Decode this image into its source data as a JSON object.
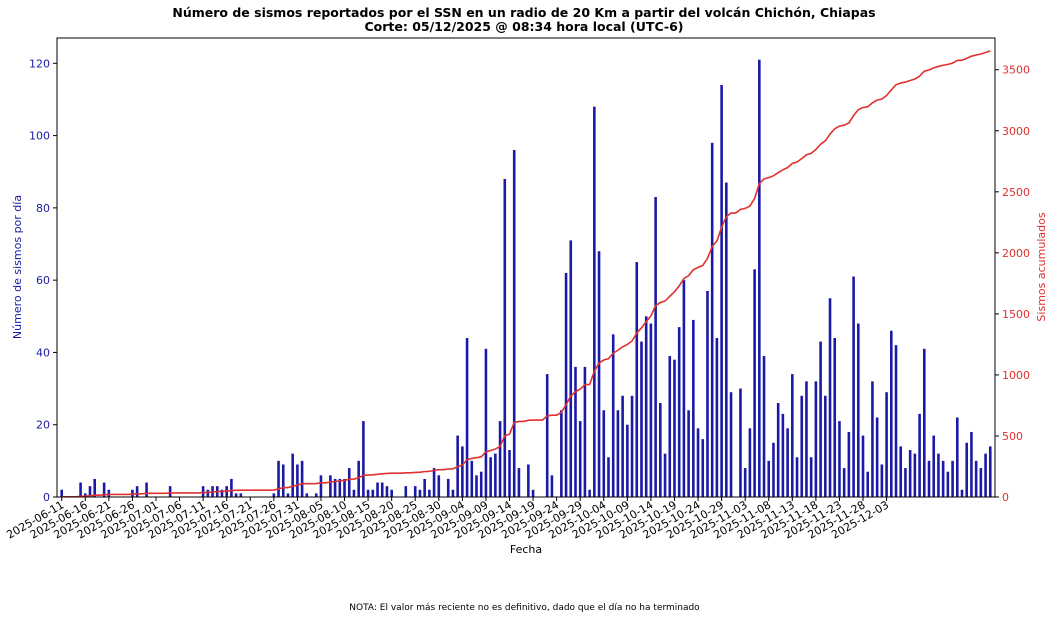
{
  "chart_data": {
    "type": "bar",
    "title": "Número de sismos reportados por el SSN en un radio de 20 Km a partir del volcán Chichón, Chiapas",
    "subtitle": "Corte: 05/12/2025 @ 08:34 hora local (UTC-6)",
    "xlabel": "Fecha",
    "ylabel": "Número de sismos por día",
    "y2label": "Sismos acumulados",
    "ylim": [
      0,
      127
    ],
    "y2lim": [
      0,
      3760
    ],
    "yticks": [
      "0",
      "20",
      "40",
      "60",
      "80",
      "100",
      "120"
    ],
    "y2ticks": [
      "0",
      "500",
      "1000",
      "1500",
      "2000",
      "2500",
      "3000",
      "3500"
    ],
    "date_start": "2025-06-11",
    "date_end": "2025-12-05",
    "xtick_labels": [
      "2025-06-11",
      "2025-06-16",
      "2025-06-21",
      "2025-06-26",
      "2025-07-01",
      "2025-07-06",
      "2025-07-11",
      "2025-07-16",
      "2025-07-21",
      "2025-07-26",
      "2025-07-31",
      "2025-08-05",
      "2025-08-10",
      "2025-08-15",
      "2025-08-20",
      "2025-08-25",
      "2025-08-30",
      "2025-09-04",
      "2025-09-09",
      "2025-09-14",
      "2025-09-19",
      "2025-09-24",
      "2025-09-29",
      "2025-10-04",
      "2025-10-09",
      "2025-10-14",
      "2025-10-19",
      "2025-10-24",
      "2025-10-29",
      "2025-11-03",
      "2025-11-08",
      "2025-11-13",
      "2025-11-18",
      "2025-11-23",
      "2025-11-28",
      "2025-12-03"
    ],
    "grid": false,
    "colors": {
      "bars": "#1a1aa6",
      "cumulative": "#e03030",
      "left_axis": "#1a1aa6",
      "right_axis": "#e03030"
    },
    "series": [
      {
        "type": "bar",
        "axis": "left",
        "values": [
          2,
          0,
          0,
          0,
          4,
          1,
          3,
          5,
          0,
          4,
          2,
          0,
          0,
          0,
          0,
          2,
          3,
          0,
          4,
          0,
          0,
          0,
          0,
          3,
          0,
          0,
          0,
          0,
          0,
          0,
          3,
          2,
          3,
          3,
          2,
          3,
          5,
          1,
          1,
          0,
          0,
          0,
          0,
          0,
          0,
          1,
          10,
          9,
          1,
          12,
          9,
          10,
          1,
          0,
          1,
          6,
          0,
          6,
          5,
          5,
          5,
          8,
          2,
          10,
          21,
          2,
          2,
          4,
          4,
          3,
          2,
          0,
          0,
          3,
          0,
          3,
          2,
          5,
          2,
          8,
          6,
          0,
          5,
          2,
          17,
          14,
          44,
          10,
          6,
          7,
          41,
          11,
          12,
          21,
          88,
          13,
          96,
          8,
          0,
          9,
          2,
          0,
          0,
          34,
          6,
          0,
          24,
          62,
          71,
          36,
          21,
          36,
          2,
          108,
          68,
          24,
          11,
          45,
          24,
          28,
          20,
          28,
          65,
          43,
          50,
          48,
          83,
          26,
          12,
          39,
          38,
          47,
          60,
          24,
          49,
          19,
          16,
          57,
          98,
          44,
          114,
          87,
          29,
          0,
          30,
          8,
          19,
          63,
          121,
          39,
          10,
          15,
          26,
          23,
          19,
          34,
          11,
          28,
          32,
          11,
          32,
          43,
          28,
          55,
          44,
          21,
          8,
          18,
          61,
          48,
          17,
          7,
          32,
          22,
          9,
          29,
          46,
          42,
          14,
          8,
          13,
          12,
          23,
          41,
          10,
          17,
          12,
          10,
          7,
          10,
          22,
          2,
          15,
          18,
          10,
          8,
          12,
          14
        ]
      },
      {
        "type": "line",
        "axis": "right",
        "values": [
          2,
          2,
          2,
          2,
          6,
          7,
          10,
          15,
          15,
          19,
          21,
          21,
          21,
          21,
          21,
          23,
          26,
          26,
          30,
          30,
          30,
          30,
          30,
          33,
          33,
          33,
          33,
          33,
          33,
          33,
          36,
          38,
          41,
          44,
          46,
          49,
          54,
          55,
          56,
          56,
          56,
          56,
          56,
          56,
          56,
          57,
          67,
          76,
          77,
          89,
          98,
          108,
          109,
          109,
          110,
          116,
          116,
          122,
          127,
          132,
          137,
          145,
          147,
          157,
          178,
          180,
          182,
          186,
          190,
          193,
          195,
          195,
          195,
          198,
          198,
          201,
          203,
          208,
          210,
          218,
          224,
          224,
          229,
          231,
          248,
          262,
          306,
          316,
          322,
          329,
          370,
          381,
          393,
          414,
          502,
          515,
          611,
          619,
          619,
          628,
          630,
          630,
          630,
          664,
          670,
          670,
          694,
          756,
          827,
          863,
          884,
          920,
          922,
          1030,
          1098,
          1122,
          1133,
          1178,
          1202,
          1230,
          1250,
          1278,
          1343,
          1386,
          1436,
          1484,
          1567,
          1593,
          1605,
          1644,
          1682,
          1729,
          1789,
          1813,
          1862,
          1881,
          1897,
          1954,
          2052,
          2096,
          2210,
          2297,
          2326,
          2326,
          2356,
          2364,
          2383,
          2446,
          2567,
          2606,
          2616,
          2631,
          2657,
          2680,
          2699,
          2733,
          2744,
          2772,
          2804,
          2815,
          2847,
          2890,
          2918,
          2973,
          3017,
          3038,
          3046,
          3064,
          3125,
          3173,
          3190,
          3197,
          3229,
          3251,
          3260,
          3289,
          3335,
          3377,
          3391,
          3399,
          3412,
          3424,
          3447,
          3488,
          3498,
          3515,
          3527,
          3537,
          3544,
          3554,
          3576,
          3578,
          3593,
          3611,
          3621,
          3629,
          3641,
          3655
        ]
      }
    ]
  },
  "note": "NOTA: El valor más reciente no es definitivo, dado que el día no ha terminado"
}
